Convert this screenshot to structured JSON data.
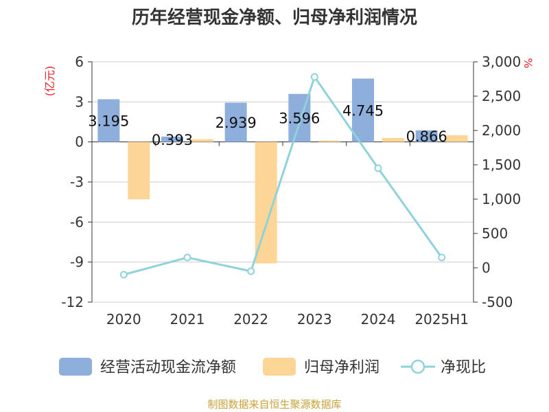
{
  "chart_data": {
    "type": "bar",
    "title": "历年经营现金净额、归母净利润情况",
    "categories": [
      "2020",
      "2021",
      "2022",
      "2023",
      "2024",
      "2025H1"
    ],
    "y_left": {
      "unit": "(亿元)",
      "ylim": [
        -12,
        6
      ],
      "ticks": [
        "6",
        "3",
        "0",
        "-3",
        "-6",
        "-9",
        "-12"
      ]
    },
    "y_right": {
      "unit": "%",
      "ylim": [
        -500,
        3000
      ],
      "ticks": [
        "3,000",
        "2,500",
        "2,000",
        "1,500",
        "1,000",
        "500",
        "0",
        "-500"
      ]
    },
    "series": [
      {
        "name": "经营活动现金流净额",
        "type": "bar",
        "axis": "left",
        "color": "#8eaedc",
        "values": [
          3.195,
          0.393,
          2.939,
          3.596,
          4.745,
          0.866
        ],
        "labels": [
          "3.195",
          "0.393",
          "2.939",
          "3.596",
          "4.745",
          "0.866"
        ]
      },
      {
        "name": "归母净利润",
        "type": "bar",
        "axis": "left",
        "color": "#fdd597",
        "values": [
          -4.3,
          0.2,
          -9.1,
          0.1,
          0.3,
          0.5
        ]
      },
      {
        "name": "净现比",
        "type": "line",
        "axis": "right",
        "color": "#8ed3d9",
        "values": [
          -100,
          150,
          -50,
          2780,
          1450,
          150
        ]
      }
    ],
    "grid": true,
    "legend_position": "bottom"
  },
  "source": "制图数据来自恒生聚源数据库"
}
